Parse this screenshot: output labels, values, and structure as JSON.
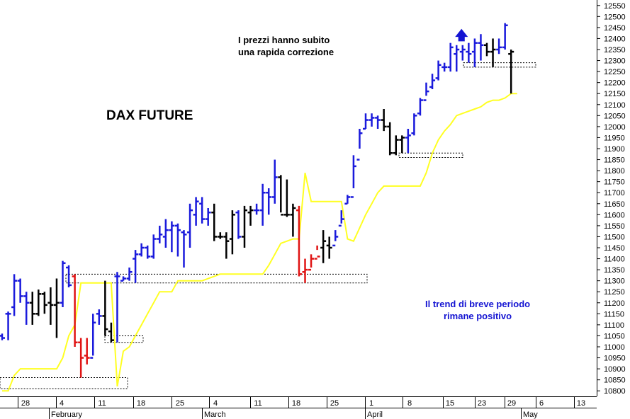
{
  "chart_data": {
    "type": "ohlc",
    "title": "DAX FUTURE",
    "annotations": [
      {
        "lines": [
          "I prezzi hanno subito",
          "una rapida correzione"
        ]
      },
      {
        "lines": [
          "Il trend di breve periodo",
          "rimane positivo"
        ]
      }
    ],
    "arrow_glyph": "🡅",
    "y_ticks": [
      10800,
      10850,
      10900,
      10950,
      11000,
      11050,
      11100,
      11150,
      11200,
      11250,
      11300,
      11350,
      11400,
      11450,
      11500,
      11550,
      11600,
      11650,
      11700,
      11750,
      11800,
      11850,
      11900,
      11950,
      12000,
      12050,
      12100,
      12150,
      12200,
      12250,
      12300,
      12350,
      12400,
      12450,
      12500,
      12550
    ],
    "ylim": [
      10775,
      12575
    ],
    "x_day_ticks": [
      "28",
      "4",
      "11",
      "18",
      "25",
      "4",
      "11",
      "18",
      "25",
      "1",
      "8",
      "15",
      "23",
      "29",
      "6",
      "13"
    ],
    "x_month_labels": [
      "February",
      "March",
      "April",
      "May"
    ],
    "colors": {
      "up": "#1a1adc",
      "neutral": "#000000",
      "down": "#e01414",
      "line": "#ffff22",
      "dotted": "#000000"
    },
    "series": [
      {
        "name": "OHLC",
        "bars": [
          [
            11050,
            11030,
            11060,
            11040,
            "u"
          ],
          [
            11150,
            11030,
            11160,
            11150,
            "u"
          ],
          [
            11180,
            11140,
            11330,
            11300,
            "u"
          ],
          [
            11300,
            11200,
            11310,
            11230,
            "u"
          ],
          [
            11230,
            11100,
            11250,
            11200,
            "u"
          ],
          [
            11200,
            11100,
            11250,
            11150,
            "k"
          ],
          [
            11150,
            11140,
            11260,
            11240,
            "k"
          ],
          [
            11240,
            11150,
            11250,
            11190,
            "k"
          ],
          [
            11200,
            11100,
            11270,
            11190,
            "k"
          ],
          [
            11190,
            11040,
            11310,
            11200,
            "k"
          ],
          [
            11200,
            11180,
            11390,
            11380,
            "u"
          ],
          [
            11360,
            11270,
            11370,
            11280,
            "u"
          ],
          [
            11320,
            11000,
            11330,
            11020,
            "r"
          ],
          [
            11020,
            10860,
            11040,
            10950,
            "r"
          ],
          [
            10960,
            10920,
            11040,
            10950,
            "r"
          ],
          [
            10950,
            10960,
            11150,
            11110,
            "u"
          ],
          [
            11150,
            11100,
            11170,
            11140,
            "u"
          ],
          [
            11140,
            11050,
            11300,
            11080,
            "k"
          ],
          [
            11070,
            11020,
            11110,
            11030,
            "k"
          ],
          [
            11320,
            11020,
            11340,
            11320,
            "u"
          ],
          [
            11300,
            11300,
            11320,
            11310,
            "u"
          ],
          [
            11310,
            11300,
            11360,
            11340,
            "u"
          ],
          [
            11400,
            11290,
            11440,
            11420,
            "u"
          ],
          [
            11420,
            11410,
            11470,
            11450,
            "u"
          ],
          [
            11450,
            11400,
            11460,
            11410,
            "u"
          ],
          [
            11410,
            11400,
            11510,
            11490,
            "u"
          ],
          [
            11490,
            11470,
            11550,
            11510,
            "u"
          ],
          [
            11500,
            11450,
            11580,
            11530,
            "u"
          ],
          [
            11530,
            11430,
            11570,
            11550,
            "u"
          ],
          [
            11550,
            11410,
            11560,
            11530,
            "u"
          ],
          [
            11520,
            11360,
            11530,
            11510,
            "u"
          ],
          [
            11520,
            11450,
            11650,
            11620,
            "u"
          ],
          [
            11600,
            11550,
            11680,
            11660,
            "u"
          ],
          [
            11650,
            11560,
            11680,
            11580,
            "u"
          ],
          [
            11580,
            11550,
            11630,
            11610,
            "u"
          ],
          [
            11610,
            11480,
            11650,
            11500,
            "k"
          ],
          [
            11500,
            11490,
            11520,
            11500,
            "k"
          ],
          [
            11500,
            11400,
            11520,
            11480,
            "k"
          ],
          [
            11490,
            11420,
            11620,
            11600,
            "k"
          ],
          [
            11610,
            11490,
            11620,
            11500,
            "u"
          ],
          [
            11500,
            11450,
            11640,
            11620,
            "k"
          ],
          [
            11610,
            11550,
            11640,
            11620,
            "k"
          ],
          [
            11620,
            11600,
            11650,
            11620,
            "u"
          ],
          [
            11620,
            11550,
            11740,
            11700,
            "u"
          ],
          [
            11700,
            11600,
            11720,
            11680,
            "u"
          ],
          [
            11680,
            11650,
            11850,
            11770,
            "u"
          ],
          [
            11770,
            11610,
            11780,
            11600,
            "k"
          ],
          [
            11600,
            11590,
            11760,
            11600,
            "k"
          ],
          [
            11600,
            11500,
            11650,
            11630,
            "k"
          ],
          [
            11620,
            11320,
            11640,
            11330,
            "r"
          ],
          [
            11340,
            11290,
            11400,
            11350,
            "r"
          ],
          [
            11350,
            11360,
            11420,
            11400,
            "r"
          ],
          [
            11400,
            11440,
            11460,
            11410,
            "r"
          ],
          [
            11450,
            11380,
            11530,
            11480,
            "k"
          ],
          [
            11460,
            11400,
            11500,
            11450,
            "k"
          ],
          [
            11460,
            11480,
            11530,
            11500,
            "u"
          ],
          [
            11550,
            11560,
            11620,
            11580,
            "u"
          ],
          [
            11650,
            11650,
            11690,
            11680,
            "u"
          ],
          [
            11680,
            11720,
            11870,
            11820,
            "u"
          ],
          [
            11850,
            11900,
            11990,
            11970,
            "u"
          ],
          [
            11990,
            11990,
            12060,
            12030,
            "u"
          ],
          [
            12030,
            12000,
            12060,
            12040,
            "u"
          ],
          [
            12040,
            11990,
            12050,
            12030,
            "u"
          ],
          [
            12030,
            11980,
            12080,
            12000,
            "k"
          ],
          [
            12000,
            11870,
            12020,
            11880,
            "k"
          ],
          [
            11880,
            11870,
            11960,
            11940,
            "k"
          ],
          [
            11940,
            11880,
            11960,
            11950,
            "k"
          ],
          [
            11950,
            11880,
            11990,
            11960,
            "u"
          ],
          [
            11970,
            11960,
            12060,
            12050,
            "u"
          ],
          [
            12060,
            12050,
            12130,
            12120,
            "u"
          ],
          [
            12120,
            12140,
            12200,
            12160,
            "u"
          ],
          [
            12180,
            12170,
            12240,
            12210,
            "u"
          ],
          [
            12220,
            12210,
            12300,
            12280,
            "u"
          ],
          [
            12270,
            12250,
            12290,
            12270,
            "u"
          ],
          [
            12270,
            12250,
            12380,
            12360,
            "u"
          ],
          [
            12330,
            12250,
            12370,
            12350,
            "u"
          ],
          [
            12340,
            12300,
            12370,
            12350,
            "u"
          ],
          [
            12340,
            12290,
            12380,
            12330,
            "u"
          ],
          [
            12340,
            12270,
            12400,
            12380,
            "u"
          ],
          [
            12380,
            12300,
            12420,
            12370,
            "u"
          ],
          [
            12370,
            12320,
            12380,
            12340,
            "k"
          ],
          [
            12340,
            12270,
            12400,
            12350,
            "k"
          ],
          [
            12350,
            12330,
            12400,
            12360,
            "u"
          ],
          [
            12360,
            12350,
            12470,
            12460,
            "u"
          ],
          [
            12330,
            12150,
            12350,
            12340,
            "k"
          ]
        ]
      },
      {
        "name": "Stop",
        "values": [
          10800,
          10800,
          10870,
          10900,
          10900,
          10900,
          10900,
          10900,
          10900,
          10900,
          10950,
          11050,
          11100,
          11290,
          11290,
          11290,
          11290,
          11290,
          11290,
          10820,
          10980,
          11000,
          11050,
          11100,
          11150,
          11200,
          11250,
          11250,
          11250,
          11300,
          11300,
          11300,
          11300,
          11300,
          11310,
          11320,
          11330,
          11330,
          11330,
          11330,
          11330,
          11330,
          11330,
          11330,
          11370,
          11420,
          11470,
          11480,
          11490,
          11490,
          11790,
          11660,
          11660,
          11660,
          11660,
          11660,
          11660,
          11490,
          11480,
          11540,
          11600,
          11650,
          11700,
          11730,
          11730,
          11730,
          11730,
          11730,
          11730,
          11730,
          11790,
          11880,
          11940,
          11980,
          12010,
          12050,
          12060,
          12070,
          12080,
          12090,
          12110,
          12120,
          12120,
          12130,
          12150,
          12150
        ]
      }
    ],
    "support_zones": [
      [
        10810,
        10860
      ],
      [
        11020,
        11050
      ],
      [
        11290,
        11330
      ],
      [
        11860,
        11880
      ],
      [
        12270,
        12290
      ]
    ]
  }
}
